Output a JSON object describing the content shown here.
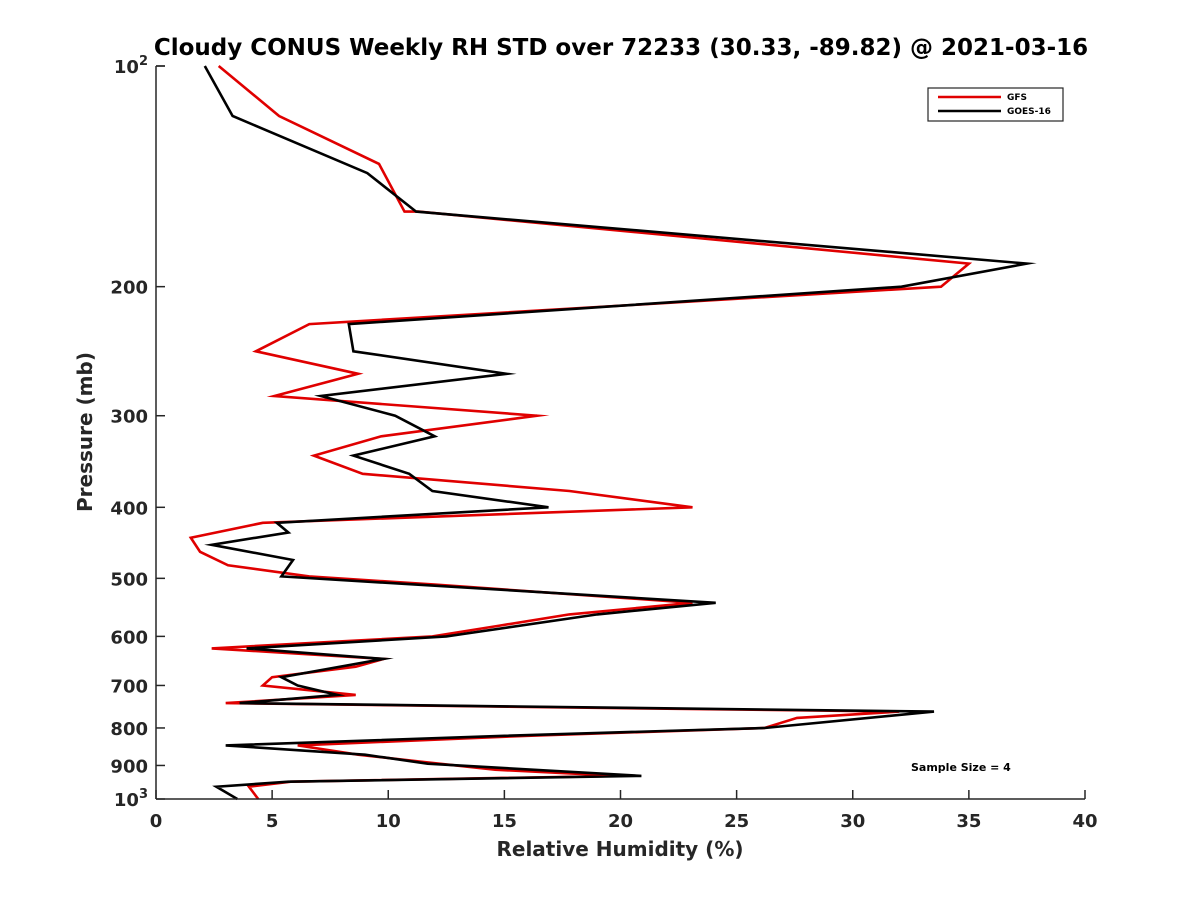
{
  "chart_data": {
    "type": "line",
    "title": "Cloudy CONUS Weekly RH STD over 72233 (30.33, -89.82) @ 2021-03-16",
    "xlabel": "Relative Humidity (%)",
    "ylabel": "Pressure (mb)",
    "xlim": [
      0,
      40
    ],
    "ylim": [
      100,
      1000
    ],
    "yscale": "log",
    "yreverse": true,
    "grid": false,
    "xticks": [
      0,
      5,
      10,
      15,
      20,
      25,
      30,
      35,
      40
    ],
    "xtick_labels": [
      "0",
      "5",
      "10",
      "15",
      "20",
      "25",
      "30",
      "35",
      "40"
    ],
    "yticks": [
      100,
      200,
      300,
      400,
      500,
      600,
      700,
      800,
      900,
      1000
    ],
    "ytick_labels": [
      {
        "base": "10",
        "exp": "2"
      },
      {
        "text": "200"
      },
      {
        "text": "300"
      },
      {
        "text": "400"
      },
      {
        "text": "500"
      },
      {
        "text": "600"
      },
      {
        "text": "700"
      },
      {
        "text": "800"
      },
      {
        "text": "900"
      },
      {
        "base": "10",
        "exp": "3"
      }
    ],
    "legend": {
      "position": "top-right",
      "entries": [
        "GFS",
        "GOES-16"
      ]
    },
    "annotation": "Sample Size = 4",
    "series": [
      {
        "name": "GFS",
        "color": "#e00000",
        "points": [
          [
            2.7,
            100
          ],
          [
            5.3,
            117
          ],
          [
            9.6,
            136
          ],
          [
            10.7,
            158
          ],
          [
            11.3,
            158
          ],
          [
            35.0,
            186
          ],
          [
            33.8,
            200
          ],
          [
            6.6,
            225
          ],
          [
            4.3,
            245
          ],
          [
            8.7,
            263
          ],
          [
            5.1,
            282
          ],
          [
            16.4,
            300
          ],
          [
            9.7,
            320
          ],
          [
            6.8,
            340
          ],
          [
            8.9,
            360
          ],
          [
            17.8,
            380
          ],
          [
            23.1,
            400
          ],
          [
            4.6,
            420
          ],
          [
            1.5,
            440
          ],
          [
            1.9,
            460
          ],
          [
            3.1,
            480
          ],
          [
            6.6,
            497
          ],
          [
            12.0,
            510
          ],
          [
            23.1,
            540
          ],
          [
            17.8,
            560
          ],
          [
            14.8,
            580
          ],
          [
            11.9,
            600
          ],
          [
            2.4,
            623
          ],
          [
            9.8,
            644
          ],
          [
            8.6,
            660
          ],
          [
            5.0,
            682
          ],
          [
            4.6,
            700
          ],
          [
            8.6,
            721
          ],
          [
            3.0,
            740
          ],
          [
            32.0,
            760
          ],
          [
            27.6,
            775
          ],
          [
            26.2,
            800
          ],
          [
            16.0,
            820
          ],
          [
            6.1,
            845
          ],
          [
            8.7,
            870
          ],
          [
            11.5,
            890
          ],
          [
            14.6,
            912
          ],
          [
            20.0,
            930
          ],
          [
            5.8,
            947
          ],
          [
            4.0,
            962
          ],
          [
            4.4,
            1000
          ]
        ]
      },
      {
        "name": "GOES-16",
        "color": "#000000",
        "points": [
          [
            2.1,
            100
          ],
          [
            3.3,
            117
          ],
          [
            9.1,
            140
          ],
          [
            11.2,
            158
          ],
          [
            37.5,
            186
          ],
          [
            32.1,
            200
          ],
          [
            8.3,
            225
          ],
          [
            8.5,
            245
          ],
          [
            15.1,
            263
          ],
          [
            7.1,
            282
          ],
          [
            10.3,
            300
          ],
          [
            12.0,
            320
          ],
          [
            8.5,
            340
          ],
          [
            10.9,
            360
          ],
          [
            11.9,
            380
          ],
          [
            16.9,
            400
          ],
          [
            5.2,
            420
          ],
          [
            5.7,
            433
          ],
          [
            2.4,
            450
          ],
          [
            5.9,
            472
          ],
          [
            5.4,
            497
          ],
          [
            24.1,
            540
          ],
          [
            19.0,
            560
          ],
          [
            12.5,
            600
          ],
          [
            3.9,
            623
          ],
          [
            9.8,
            644
          ],
          [
            5.4,
            682
          ],
          [
            6.1,
            700
          ],
          [
            7.8,
            721
          ],
          [
            3.6,
            740
          ],
          [
            33.5,
            760
          ],
          [
            26.2,
            800
          ],
          [
            15.0,
            820
          ],
          [
            3.0,
            845
          ],
          [
            9.0,
            870
          ],
          [
            11.7,
            895
          ],
          [
            20.9,
            930
          ],
          [
            5.7,
            947
          ],
          [
            2.6,
            962
          ],
          [
            3.5,
            1000
          ]
        ]
      }
    ]
  },
  "colors": {
    "gfs": "#e00000",
    "goes": "#000000",
    "axis": "#262626"
  }
}
